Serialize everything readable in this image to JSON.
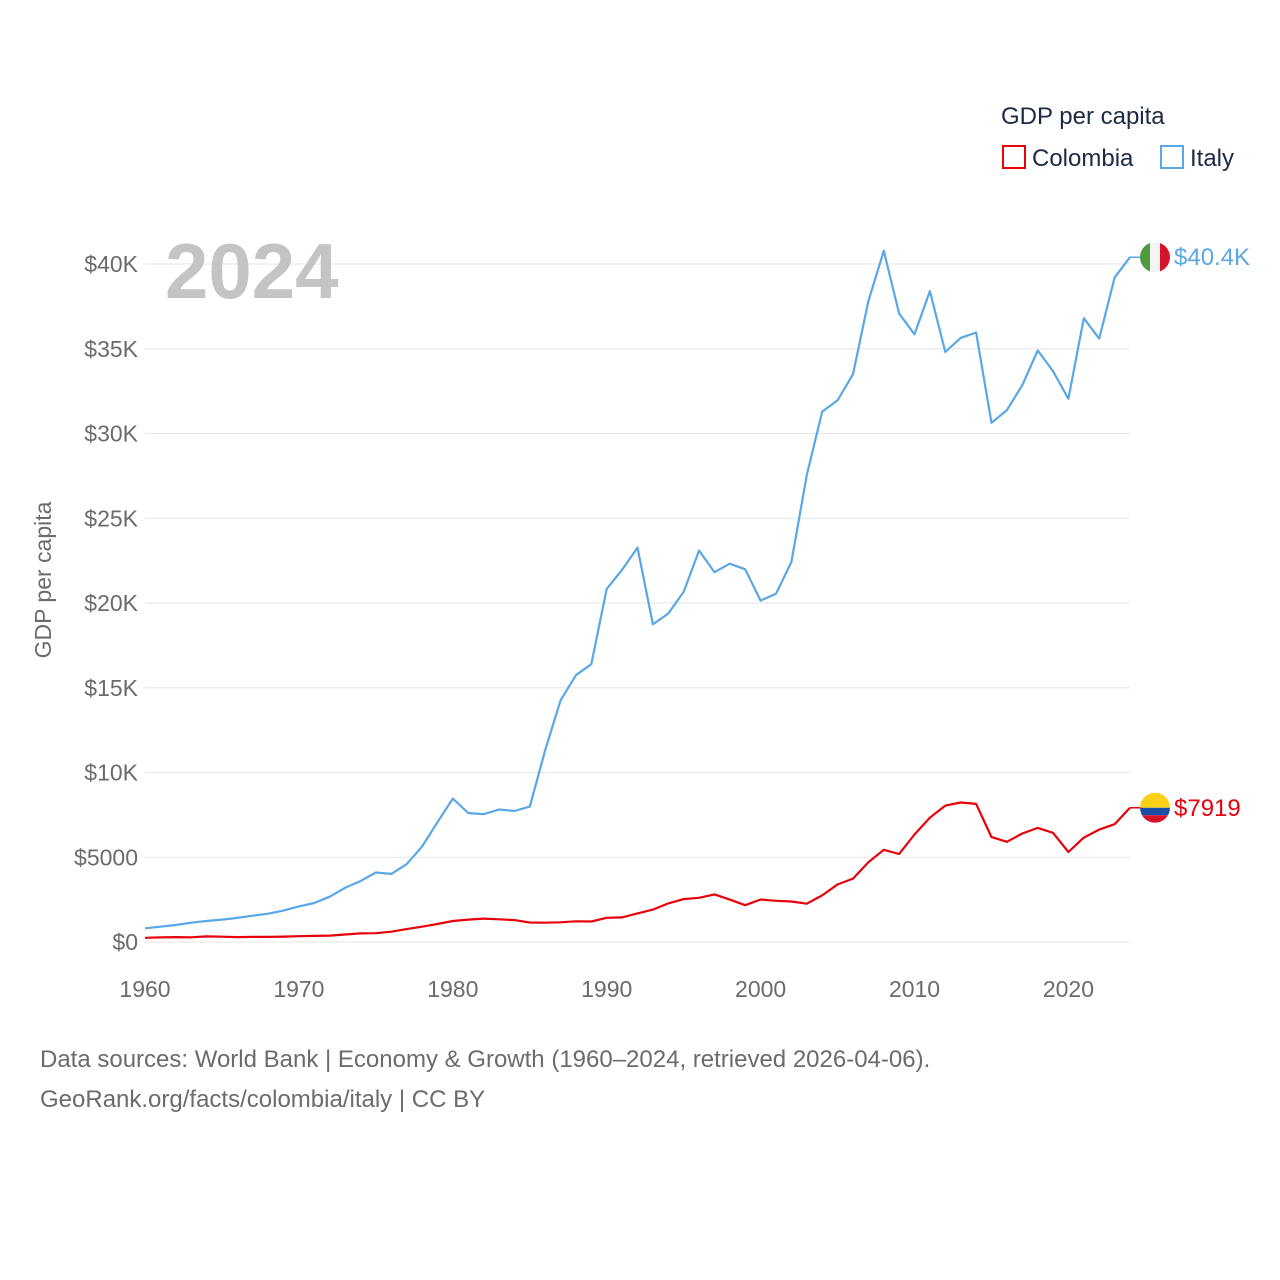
{
  "chart_data": {
    "type": "line",
    "title": "",
    "ylabel": "GDP per capita",
    "xlabel": "",
    "xlim": [
      1960,
      2024
    ],
    "ylim": [
      0,
      42000
    ],
    "y_ticks": [
      0,
      5000,
      10000,
      15000,
      20000,
      25000,
      30000,
      35000,
      40000
    ],
    "y_tick_labels": [
      "$0",
      "$5000",
      "$10K",
      "$15K",
      "$20K",
      "$25K",
      "$30K",
      "$35K",
      "$40K"
    ],
    "x_ticks": [
      1960,
      1970,
      1980,
      1990,
      2000,
      2010,
      2020
    ],
    "x_tick_labels": [
      "1960",
      "1970",
      "1980",
      "1990",
      "2000",
      "2010",
      "2020"
    ],
    "year_display": "2024",
    "legend": {
      "title": "GDP per capita",
      "position": "top-right",
      "entries": [
        "Colombia",
        "Italy"
      ]
    },
    "series": [
      {
        "name": "Colombia",
        "color": "#e8000b",
        "end_label": "$7919",
        "flag": "colombia-flag",
        "x": [
          1960,
          1961,
          1962,
          1963,
          1964,
          1965,
          1966,
          1967,
          1968,
          1969,
          1970,
          1971,
          1972,
          1973,
          1974,
          1975,
          1976,
          1977,
          1978,
          1979,
          1980,
          1981,
          1982,
          1983,
          1984,
          1985,
          1986,
          1987,
          1988,
          1989,
          1990,
          1991,
          1992,
          1993,
          1994,
          1995,
          1996,
          1997,
          1998,
          1999,
          2000,
          2001,
          2002,
          2003,
          2004,
          2005,
          2006,
          2007,
          2008,
          2009,
          2010,
          2011,
          2012,
          2013,
          2014,
          2015,
          2016,
          2017,
          2018,
          2019,
          2020,
          2021,
          2022,
          2023,
          2024
        ],
        "values": [
          250,
          270,
          290,
          280,
          330,
          310,
          290,
          300,
          300,
          320,
          340,
          360,
          380,
          440,
          510,
          520,
          610,
          760,
          900,
          1060,
          1240,
          1320,
          1380,
          1340,
          1290,
          1150,
          1140,
          1160,
          1220,
          1210,
          1430,
          1450,
          1690,
          1910,
          2280,
          2530,
          2610,
          2810,
          2500,
          2170,
          2510,
          2430,
          2390,
          2260,
          2750,
          3400,
          3740,
          4710,
          5440,
          5190,
          6340,
          7340,
          8050,
          8230,
          8150,
          6190,
          5910,
          6400,
          6730,
          6440,
          5310,
          6160,
          6630,
          6950,
          7919
        ]
      },
      {
        "name": "Italy",
        "color": "#5aa7e6",
        "end_label": "$40.4K",
        "flag": "italy-flag",
        "x": [
          1960,
          1961,
          1962,
          1963,
          1964,
          1965,
          1966,
          1967,
          1968,
          1969,
          1970,
          1971,
          1972,
          1973,
          1974,
          1975,
          1976,
          1977,
          1978,
          1979,
          1980,
          1981,
          1982,
          1983,
          1984,
          1985,
          1986,
          1987,
          1988,
          1989,
          1990,
          1991,
          1992,
          1993,
          1994,
          1995,
          1996,
          1997,
          1998,
          1999,
          2000,
          2001,
          2002,
          2003,
          2004,
          2005,
          2006,
          2007,
          2008,
          2009,
          2010,
          2011,
          2012,
          2013,
          2014,
          2015,
          2016,
          2017,
          2018,
          2019,
          2020,
          2021,
          2022,
          2023,
          2024
        ],
        "values": [
          810,
          900,
          1000,
          1140,
          1240,
          1320,
          1420,
          1550,
          1670,
          1850,
          2100,
          2300,
          2670,
          3200,
          3590,
          4100,
          4020,
          4590,
          5620,
          7060,
          8460,
          7610,
          7540,
          7820,
          7730,
          7990,
          11320,
          14240,
          15740,
          16390,
          20830,
          21960,
          23270,
          18740,
          19380,
          20660,
          23100,
          21820,
          22320,
          21990,
          20140,
          20540,
          22420,
          27550,
          31290,
          31960,
          33500,
          37820,
          40780,
          37080,
          35850,
          38400,
          34810,
          35640,
          35960,
          30630,
          31380,
          32850,
          34900,
          33680,
          32050,
          36800,
          35600,
          39200,
          40400
        ]
      }
    ]
  },
  "source": {
    "line1": "Data sources: World Bank | Economy & Growth (1960–2024, retrieved 2026-04-06).",
    "line2": "GeoRank.org/facts/colombia/italy | CC BY"
  }
}
